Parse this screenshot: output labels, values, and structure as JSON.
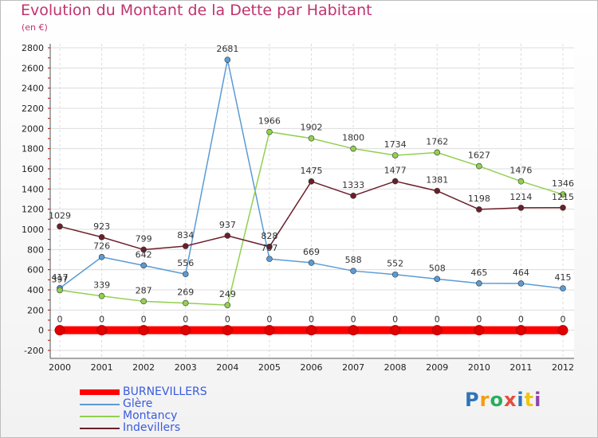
{
  "title": "Evolution du Montant de la Dette par Habitant",
  "subtitle": "(en €)",
  "logo": {
    "text": "Proxiti"
  },
  "chart_data": {
    "type": "line",
    "x": [
      "2000",
      "2001",
      "2002",
      "2003",
      "2004",
      "2005",
      "2006",
      "2007",
      "2008",
      "2009",
      "2010",
      "2011",
      "2012"
    ],
    "ylim": [
      -200,
      2800
    ],
    "yticks": [
      -200,
      0,
      200,
      400,
      600,
      800,
      1000,
      1200,
      1400,
      1600,
      1800,
      2000,
      2200,
      2400,
      2600,
      2800
    ],
    "grid": true,
    "legend_position": "bottom-left",
    "series": [
      {
        "name": "BURNEVILLERS",
        "color": "#ff0000",
        "values": [
          0,
          0,
          0,
          0,
          0,
          0,
          0,
          0,
          0,
          0,
          0,
          0,
          0
        ]
      },
      {
        "name": "Glère",
        "color": "#5b9bd5",
        "values": [
          417,
          726,
          642,
          556,
          2681,
          707,
          669,
          588,
          552,
          508,
          465,
          464,
          415
        ]
      },
      {
        "name": "Montancy",
        "color": "#92d050",
        "values": [
          397,
          339,
          287,
          269,
          249,
          1966,
          1902,
          1800,
          1734,
          1762,
          1627,
          1476,
          1346
        ]
      },
      {
        "name": "Indevillers",
        "color": "#6b1f2a",
        "values": [
          1029,
          923,
          799,
          834,
          937,
          828,
          1475,
          1333,
          1477,
          1381,
          1198,
          1214,
          1215
        ]
      }
    ]
  }
}
